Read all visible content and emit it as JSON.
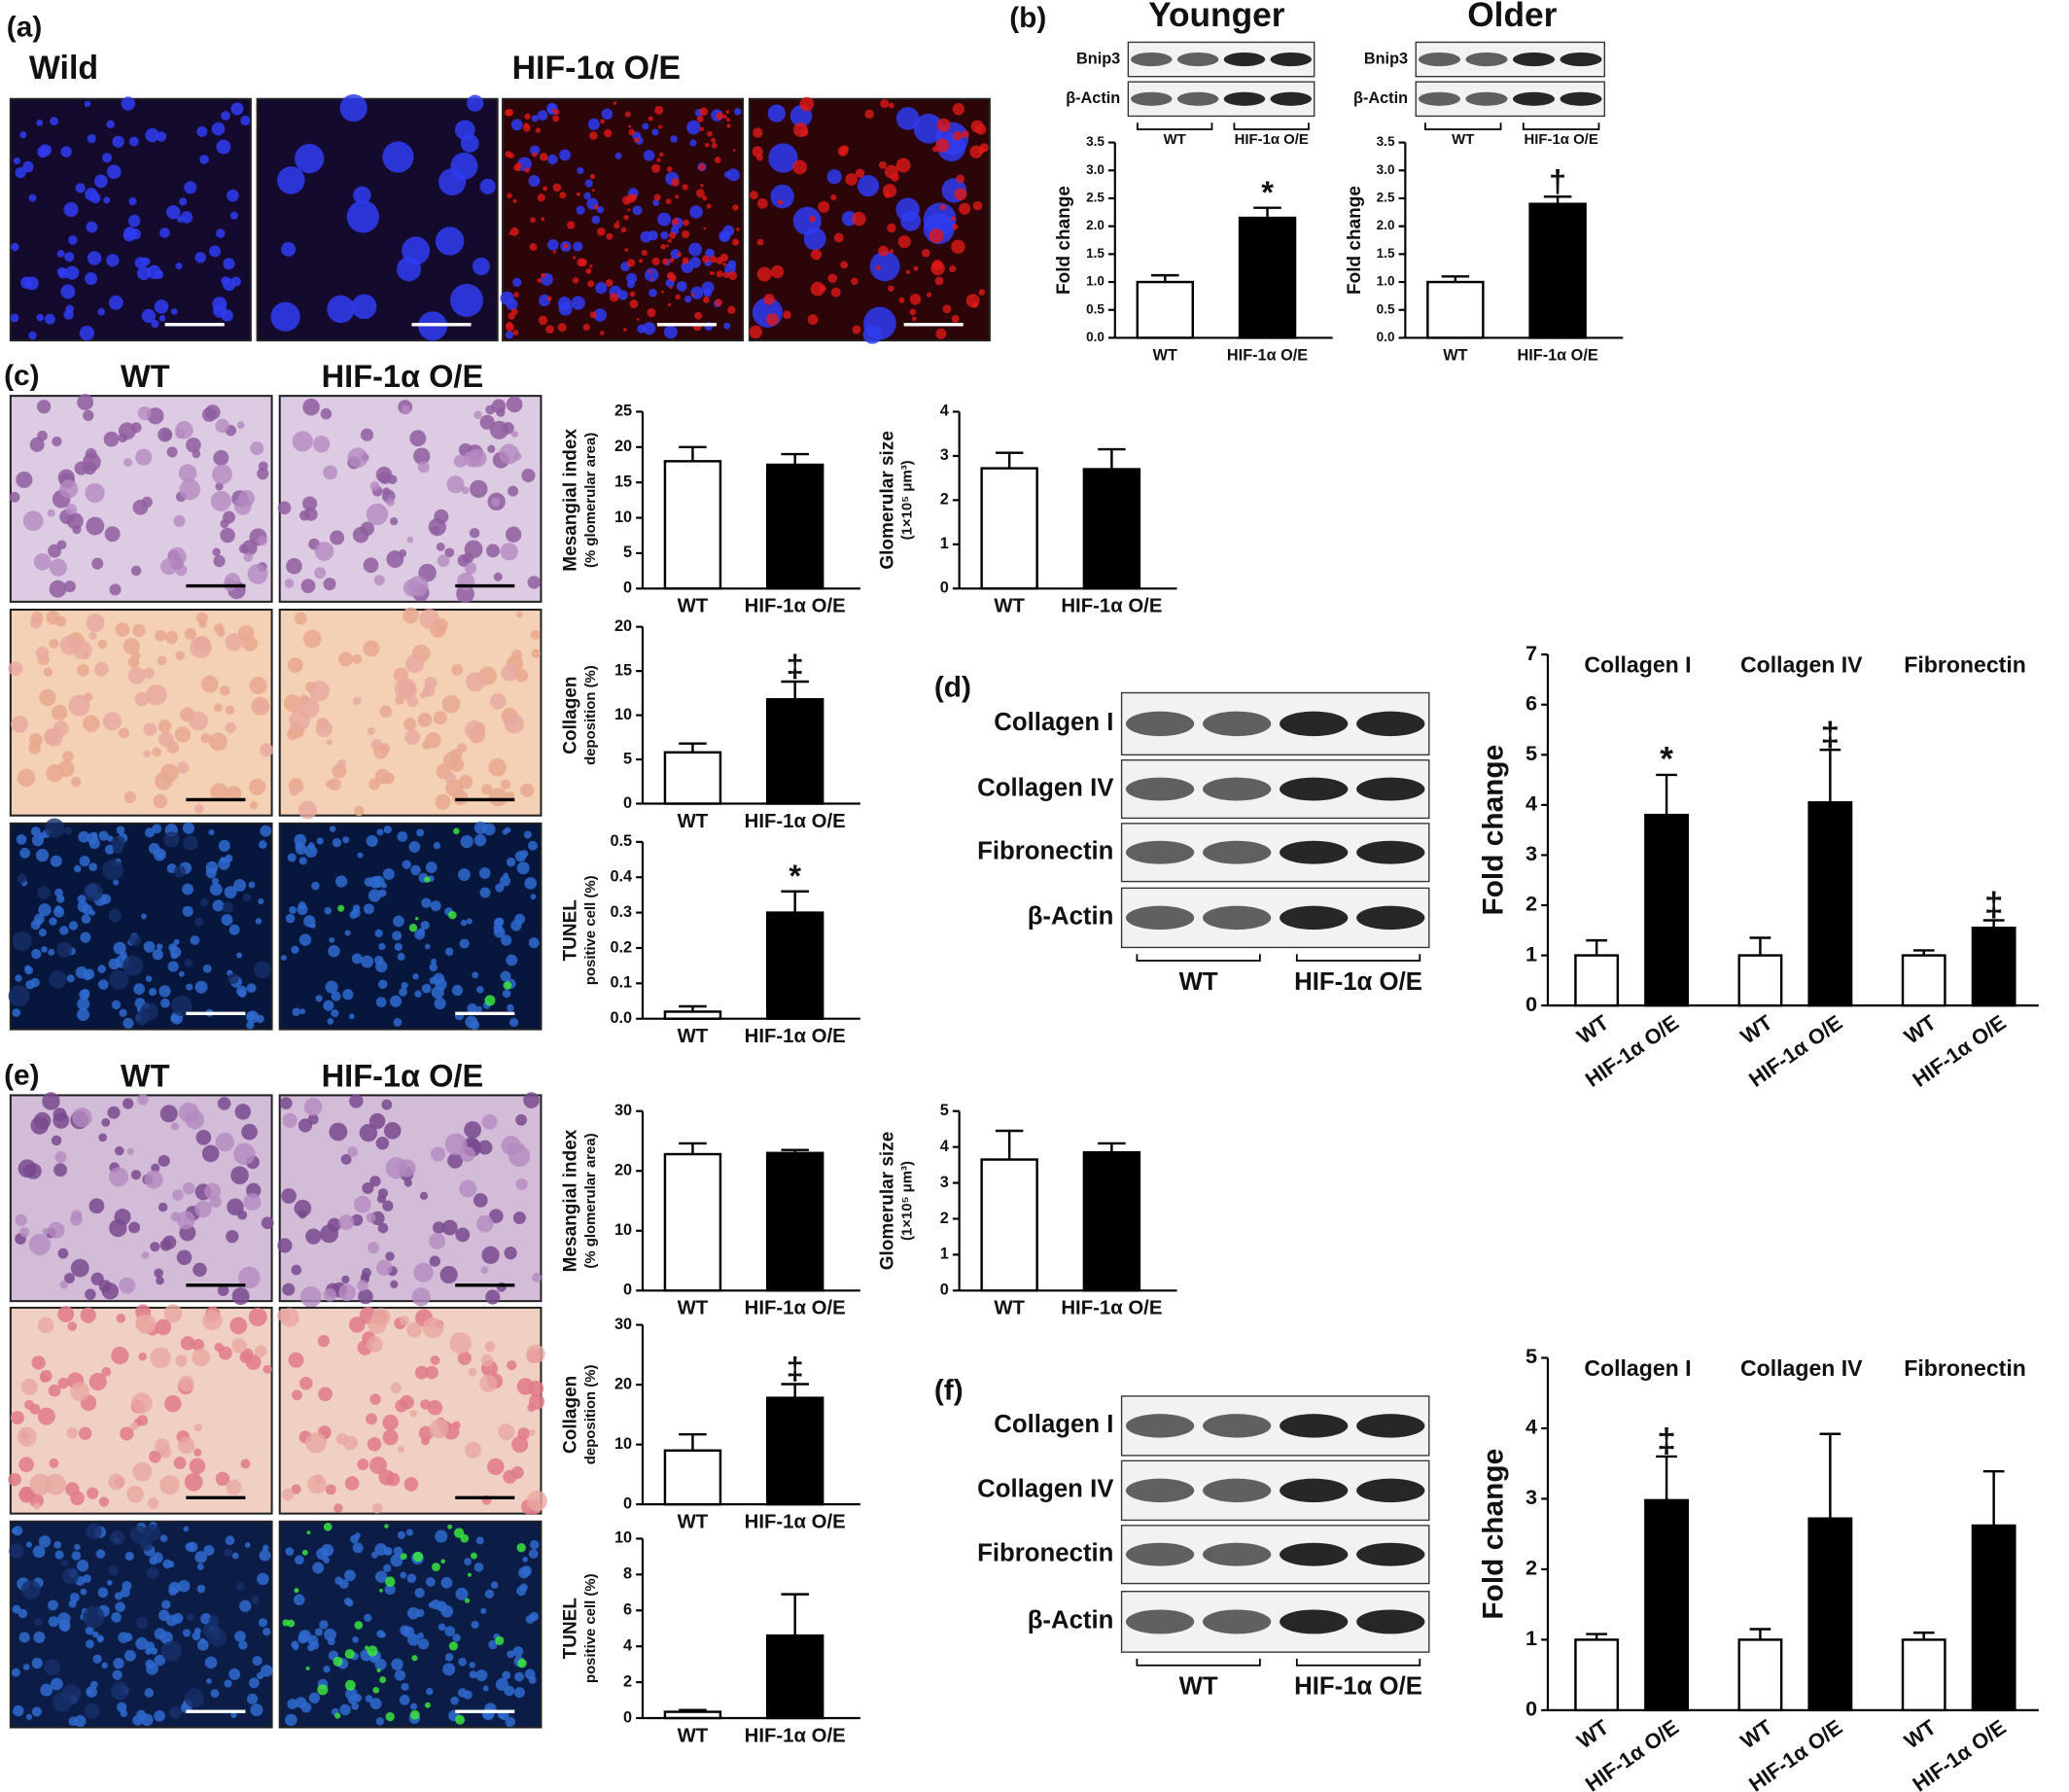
{
  "figure": {
    "a": {
      "label": "(a)",
      "headers": [
        "Wild",
        "HIF-1α O/E"
      ]
    },
    "b": {
      "label": "(b)",
      "blots": [
        {
          "title": "Younger",
          "rows": [
            "Bnip3",
            "β-Actin"
          ],
          "groups": [
            "WT",
            "HIF-1α O/E"
          ]
        },
        {
          "title": "Older",
          "rows": [
            "Bnip3",
            "β-Actin"
          ],
          "groups": [
            "WT",
            "HIF-1α O/E"
          ]
        }
      ]
    },
    "c": {
      "label": "(c)",
      "headers": [
        "WT",
        "HIF-1α O/E"
      ]
    },
    "d": {
      "label": "(d)",
      "blot": {
        "rows": [
          "Collagen I",
          "Collagen IV",
          "Fibronectin",
          "β-Actin"
        ],
        "groups": [
          "WT",
          "HIF-1α O/E"
        ]
      }
    },
    "e": {
      "label": "(e)",
      "headers": [
        "WT",
        "HIF-1α O/E"
      ]
    },
    "f": {
      "label": "(f)",
      "blot": {
        "rows": [
          "Collagen I",
          "Collagen IV",
          "Fibronectin",
          "β-Actin"
        ],
        "groups": [
          "WT",
          "HIF-1α O/E"
        ]
      }
    }
  },
  "chart_data": [
    {
      "type": "bar",
      "ylabel": [
        "Fold change"
      ],
      "categories": [
        "WT",
        "HIF-1α O/E"
      ],
      "values": [
        1.0,
        2.15
      ],
      "errors": [
        0.12,
        0.18
      ],
      "annotations": [
        null,
        "*"
      ],
      "colors": [
        "#ffffff",
        "#000000"
      ],
      "ylim": [
        0,
        3.5
      ],
      "yticks": [
        {
          "value": 0,
          "label": "0.0"
        },
        0.5,
        {
          "value": 1,
          "label": "1.0"
        },
        1.5,
        {
          "value": 2,
          "label": "2.0"
        },
        2.5,
        {
          "value": 3,
          "label": "3.0"
        },
        3.5
      ]
    },
    {
      "type": "bar",
      "ylabel": [
        "Fold change"
      ],
      "categories": [
        "WT",
        "HIF-1α O/E"
      ],
      "values": [
        1.0,
        2.4
      ],
      "errors": [
        0.1,
        0.13
      ],
      "annotations": [
        null,
        "†"
      ],
      "colors": [
        "#ffffff",
        "#000000"
      ],
      "ylim": [
        0,
        3.5
      ],
      "yticks": [
        {
          "value": 0,
          "label": "0.0"
        },
        0.5,
        {
          "value": 1,
          "label": "1.0"
        },
        1.5,
        {
          "value": 2,
          "label": "2.0"
        },
        2.5,
        {
          "value": 3,
          "label": "3.0"
        },
        3.5
      ]
    },
    {
      "type": "bar",
      "ylabel": [
        "Mesangial index",
        "(% glomerular area)"
      ],
      "categories": [
        "WT",
        "HIF-1α O/E"
      ],
      "values": [
        18,
        17.5
      ],
      "errors": [
        2,
        1.5
      ],
      "colors": [
        "#ffffff",
        "#000000"
      ],
      "ylim": [
        0,
        25
      ],
      "yticks": [
        0,
        5,
        10,
        15,
        20,
        25
      ]
    },
    {
      "type": "bar",
      "ylabel": [
        "Glomerular size",
        "(1×10⁵ μm³)"
      ],
      "categories": [
        "WT",
        "HIF-1α O/E"
      ],
      "values": [
        2.72,
        2.7
      ],
      "errors": [
        0.35,
        0.45
      ],
      "colors": [
        "#ffffff",
        "#000000"
      ],
      "ylim": [
        0,
        4
      ],
      "yticks": [
        0,
        1,
        2,
        3,
        4
      ]
    },
    {
      "type": "bar",
      "ylabel": [
        "Collagen",
        "deposition (%)"
      ],
      "categories": [
        "WT",
        "HIF-1α O/E"
      ],
      "values": [
        5.8,
        11.8
      ],
      "errors": [
        1,
        2
      ],
      "annotations": [
        null,
        "‡"
      ],
      "colors": [
        "#ffffff",
        "#000000"
      ],
      "ylim": [
        0,
        20
      ],
      "yticks": [
        0,
        5,
        10,
        15,
        20
      ]
    },
    {
      "type": "bar",
      "ylabel": [
        "TUNEL",
        "positive cell (%)"
      ],
      "categories": [
        "WT",
        "HIF-1α O/E"
      ],
      "values": [
        0.02,
        0.3
      ],
      "errors": [
        0.015,
        0.06
      ],
      "annotations": [
        null,
        "*"
      ],
      "colors": [
        "#ffffff",
        "#000000"
      ],
      "ylim": [
        0,
        0.5
      ],
      "yticks": [
        {
          "value": 0,
          "label": "0.0"
        },
        0.1,
        0.2,
        0.3,
        0.4,
        0.5
      ]
    },
    {
      "type": "grouped_bar",
      "ylabel": [
        "Fold change"
      ],
      "categories": [
        "Collagen I",
        "Collagen IV",
        "Fibronectin"
      ],
      "ylim": [
        0,
        7
      ],
      "yticks": [
        0,
        1,
        2,
        3,
        4,
        5,
        6,
        7
      ],
      "series": [
        {
          "name": "WT",
          "color": "#ffffff",
          "values": [
            1,
            1,
            1
          ],
          "errors": [
            0.3,
            0.35,
            0.1
          ]
        },
        {
          "name": "HIF-1α O/E",
          "color": "#000000",
          "values": [
            3.8,
            4.05,
            1.55
          ],
          "errors": [
            0.8,
            1.05,
            0.15
          ],
          "annotations": [
            "*",
            "‡",
            "‡"
          ]
        }
      ]
    },
    {
      "type": "bar",
      "ylabel": [
        "Mesangial index",
        "(% glomerular area)"
      ],
      "categories": [
        "WT",
        "HIF-1α O/E"
      ],
      "values": [
        22.8,
        23
      ],
      "errors": [
        1.8,
        0.5
      ],
      "colors": [
        "#ffffff",
        "#000000"
      ],
      "ylim": [
        0,
        30
      ],
      "yticks": [
        0,
        10,
        20,
        30
      ]
    },
    {
      "type": "bar",
      "ylabel": [
        "Glomerular size",
        "(1×10⁵ μm³)"
      ],
      "categories": [
        "WT",
        "HIF-1α O/E"
      ],
      "values": [
        3.65,
        3.85
      ],
      "errors": [
        0.8,
        0.25
      ],
      "colors": [
        "#ffffff",
        "#000000"
      ],
      "ylim": [
        0,
        5
      ],
      "yticks": [
        0,
        1,
        2,
        3,
        4,
        5
      ]
    },
    {
      "type": "bar",
      "ylabel": [
        "Collagen",
        "deposition (%)"
      ],
      "categories": [
        "WT",
        "HIF-1α O/E"
      ],
      "values": [
        9,
        17.8
      ],
      "errors": [
        2.7,
        2.3
      ],
      "annotations": [
        null,
        "‡"
      ],
      "colors": [
        "#ffffff",
        "#000000"
      ],
      "ylim": [
        0,
        30
      ],
      "yticks": [
        0,
        10,
        20,
        30
      ]
    },
    {
      "type": "bar",
      "ylabel": [
        "TUNEL",
        "positive cell (%)"
      ],
      "categories": [
        "WT",
        "HIF-1α O/E"
      ],
      "values": [
        0.35,
        4.6
      ],
      "errors": [
        0.1,
        2.3
      ],
      "colors": [
        "#ffffff",
        "#000000"
      ],
      "ylim": [
        0,
        10
      ],
      "yticks": [
        0,
        2,
        4,
        6,
        8,
        10
      ]
    },
    {
      "type": "grouped_bar",
      "ylabel": [
        "Fold change"
      ],
      "categories": [
        "Collagen I",
        "Collagen IV",
        "Fibronectin"
      ],
      "ylim": [
        0,
        5
      ],
      "yticks": [
        0,
        1,
        2,
        3,
        4,
        5
      ],
      "series": [
        {
          "name": "WT",
          "color": "#ffffff",
          "values": [
            1,
            1,
            1
          ],
          "errors": [
            0.08,
            0.15,
            0.1
          ]
        },
        {
          "name": "HIF-1α O/E",
          "color": "#000000",
          "values": [
            2.98,
            2.72,
            2.62
          ],
          "errors": [
            0.62,
            1.2,
            0.77
          ],
          "annotations": [
            "‡",
            null,
            null
          ]
        }
      ]
    }
  ]
}
